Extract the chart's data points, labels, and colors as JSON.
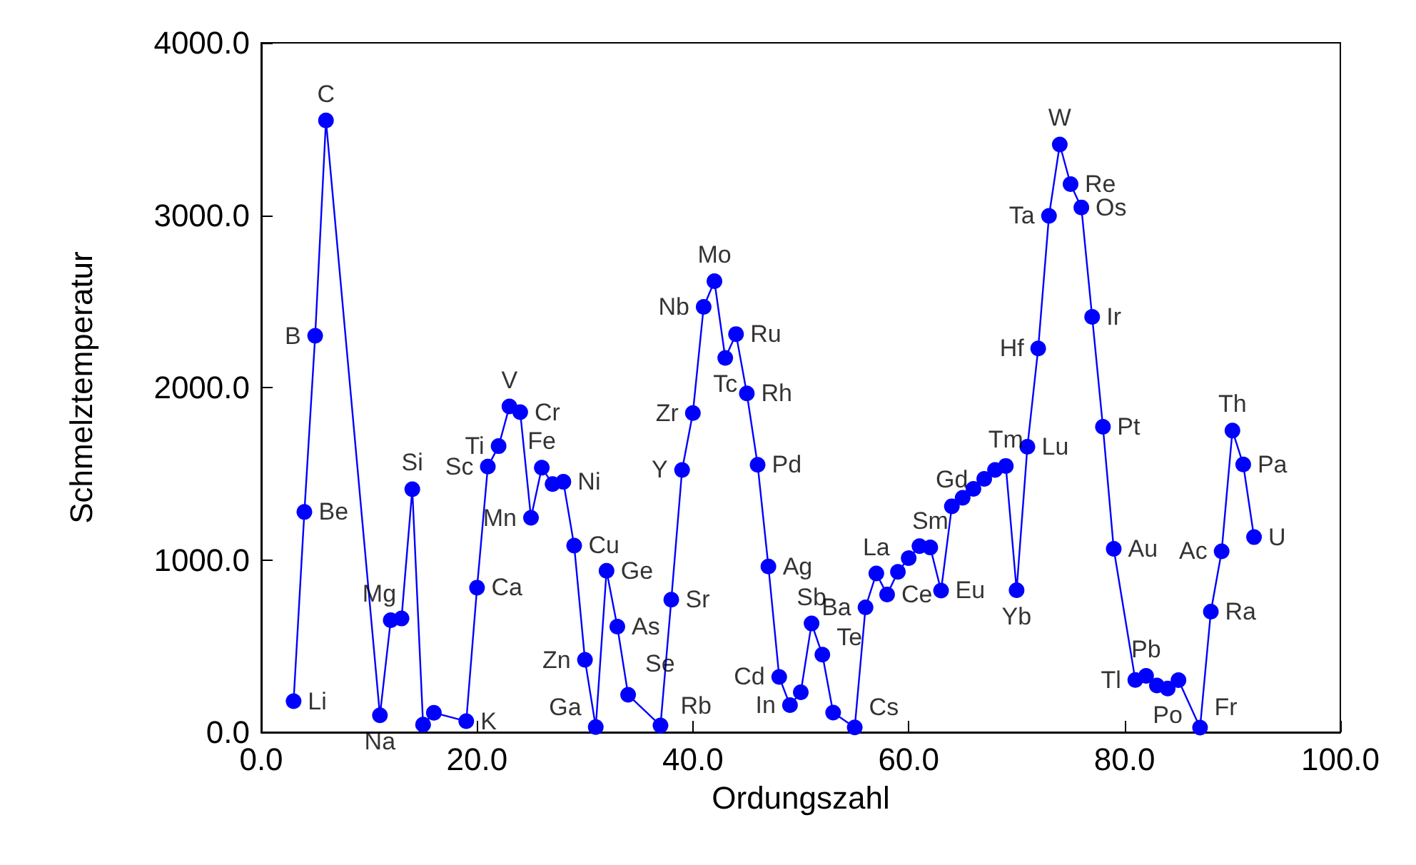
{
  "chart_data": {
    "type": "line",
    "xlabel": "Ordungszahl",
    "ylabel": "Schmelztemperatur",
    "x": [
      3,
      4,
      5,
      6,
      11,
      12,
      13,
      14,
      15,
      16,
      19,
      20,
      21,
      22,
      23,
      24,
      25,
      26,
      27,
      28,
      29,
      30,
      31,
      32,
      33,
      34,
      37,
      38,
      39,
      40,
      41,
      42,
      43,
      44,
      45,
      46,
      47,
      48,
      49,
      50,
      51,
      52,
      53,
      55,
      56,
      57,
      58,
      59,
      60,
      61,
      62,
      63,
      64,
      65,
      66,
      67,
      68,
      69,
      70,
      71,
      72,
      73,
      74,
      75,
      76,
      77,
      78,
      79,
      81,
      82,
      83,
      84,
      85,
      87,
      88,
      89,
      90,
      91,
      92
    ],
    "series": [
      {
        "color": "#0000ff",
        "values": [
          180,
          1278,
          2300,
          3550,
          98,
          650,
          660,
          1410,
          44,
          113,
          64,
          839,
          1541,
          1660,
          1890,
          1857,
          1244,
          1535,
          1440,
          1453,
          1083,
          420,
          30,
          937,
          613,
          217,
          39,
          769,
          1522,
          1852,
          2468,
          2617,
          2172,
          2310,
          1966,
          1552,
          962,
          321,
          157,
          232,
          631,
          450,
          114,
          28,
          725,
          921,
          799,
          931,
          1010,
          1080,
          1072,
          822,
          1311,
          1360,
          1412,
          1470,
          1522,
          1545,
          824,
          1656,
          2227,
          2996,
          3410,
          3180,
          3045,
          2410,
          1772,
          1064,
          303,
          327,
          271,
          254,
          302,
          27,
          700,
          1050,
          1750,
          1554,
          1132
        ]
      }
    ],
    "annotations": [
      {
        "text": "Li",
        "x": 3,
        "y": 180
      },
      {
        "text": "Be",
        "x": 4,
        "y": 1278
      },
      {
        "text": "B",
        "x": 5,
        "y": 2300
      },
      {
        "text": "C",
        "x": 6,
        "y": 3550
      },
      {
        "text": "Na",
        "x": 11,
        "y": 98
      },
      {
        "text": "Mg",
        "x": 12,
        "y": 650
      },
      {
        "text": "Si",
        "x": 14,
        "y": 1410
      },
      {
        "text": "K",
        "x": 19,
        "y": 64
      },
      {
        "text": "Ca",
        "x": 20,
        "y": 839
      },
      {
        "text": "Sc",
        "x": 21,
        "y": 1541
      },
      {
        "text": "Ti",
        "x": 22,
        "y": 1660
      },
      {
        "text": "V",
        "x": 23,
        "y": 1890
      },
      {
        "text": "Cr",
        "x": 24,
        "y": 1857
      },
      {
        "text": "Mn",
        "x": 25,
        "y": 1244
      },
      {
        "text": "Fe",
        "x": 26,
        "y": 1535
      },
      {
        "text": "Ni",
        "x": 28,
        "y": 1453
      },
      {
        "text": "Cu",
        "x": 29,
        "y": 1083
      },
      {
        "text": "Zn",
        "x": 30,
        "y": 420
      },
      {
        "text": "Ga",
        "x": 31,
        "y": 30
      },
      {
        "text": "Ge",
        "x": 32,
        "y": 937
      },
      {
        "text": "As",
        "x": 33,
        "y": 613
      },
      {
        "text": "Se",
        "x": 34,
        "y": 217
      },
      {
        "text": "Rb",
        "x": 37,
        "y": 39
      },
      {
        "text": "Sr",
        "x": 38,
        "y": 769
      },
      {
        "text": "Y",
        "x": 39,
        "y": 1522
      },
      {
        "text": "Zr",
        "x": 40,
        "y": 1852
      },
      {
        "text": "Nb",
        "x": 41,
        "y": 2468
      },
      {
        "text": "Mo",
        "x": 42,
        "y": 2617
      },
      {
        "text": "Tc",
        "x": 43,
        "y": 2172
      },
      {
        "text": "Ru",
        "x": 44,
        "y": 2310
      },
      {
        "text": "Rh",
        "x": 45,
        "y": 1966
      },
      {
        "text": "Pd",
        "x": 46,
        "y": 1552
      },
      {
        "text": "Ag",
        "x": 47,
        "y": 962
      },
      {
        "text": "Cd",
        "x": 48,
        "y": 321
      },
      {
        "text": "In",
        "x": 49,
        "y": 157
      },
      {
        "text": "Sb",
        "x": 51,
        "y": 631
      },
      {
        "text": "Te",
        "x": 52,
        "y": 450
      },
      {
        "text": "Cs",
        "x": 55,
        "y": 28
      },
      {
        "text": "Ba",
        "x": 56,
        "y": 725
      },
      {
        "text": "La",
        "x": 57,
        "y": 921
      },
      {
        "text": "Ce",
        "x": 58,
        "y": 799
      },
      {
        "text": "Sm",
        "x": 62,
        "y": 1072
      },
      {
        "text": "Eu",
        "x": 63,
        "y": 822
      },
      {
        "text": "Gd",
        "x": 64,
        "y": 1311
      },
      {
        "text": "Tm",
        "x": 69,
        "y": 1545
      },
      {
        "text": "Yb",
        "x": 70,
        "y": 824
      },
      {
        "text": "Lu",
        "x": 71,
        "y": 1656
      },
      {
        "text": "Hf",
        "x": 72,
        "y": 2227
      },
      {
        "text": "Ta",
        "x": 73,
        "y": 2996
      },
      {
        "text": "W",
        "x": 74,
        "y": 3410
      },
      {
        "text": "Re",
        "x": 75,
        "y": 3180
      },
      {
        "text": "Os",
        "x": 76,
        "y": 3045
      },
      {
        "text": "Ir",
        "x": 77,
        "y": 2410
      },
      {
        "text": "Pt",
        "x": 78,
        "y": 1772
      },
      {
        "text": "Au",
        "x": 79,
        "y": 1064
      },
      {
        "text": "Tl",
        "x": 81,
        "y": 303
      },
      {
        "text": "Pb",
        "x": 82,
        "y": 327
      },
      {
        "text": "Po",
        "x": 84,
        "y": 254
      },
      {
        "text": "Fr",
        "x": 87,
        "y": 27
      },
      {
        "text": "Ra",
        "x": 88,
        "y": 700
      },
      {
        "text": "Ac",
        "x": 89,
        "y": 1050
      },
      {
        "text": "Th",
        "x": 90,
        "y": 1750
      },
      {
        "text": "Pa",
        "x": 91,
        "y": 1554
      },
      {
        "text": "U",
        "x": 92,
        "y": 1132
      }
    ],
    "xlim": [
      0,
      100
    ],
    "xticks": [
      {
        "value": 0,
        "label": "0.0"
      },
      {
        "value": 20,
        "label": "20.0"
      },
      {
        "value": 40,
        "label": "40.0"
      },
      {
        "value": 60,
        "label": "60.0"
      },
      {
        "value": 80,
        "label": "80.0"
      },
      {
        "value": 100,
        "label": "100.0"
      }
    ],
    "ylim": [
      0,
      4000
    ],
    "yticks": [
      {
        "value": 0,
        "label": "0.0"
      },
      {
        "value": 1000,
        "label": "1000.0"
      },
      {
        "value": 2000,
        "label": "2000.0"
      },
      {
        "value": 3000,
        "label": "3000.0"
      },
      {
        "value": 4000,
        "label": "4000.0"
      }
    ],
    "grid": false,
    "marker": "circle",
    "line_style": "solid"
  }
}
